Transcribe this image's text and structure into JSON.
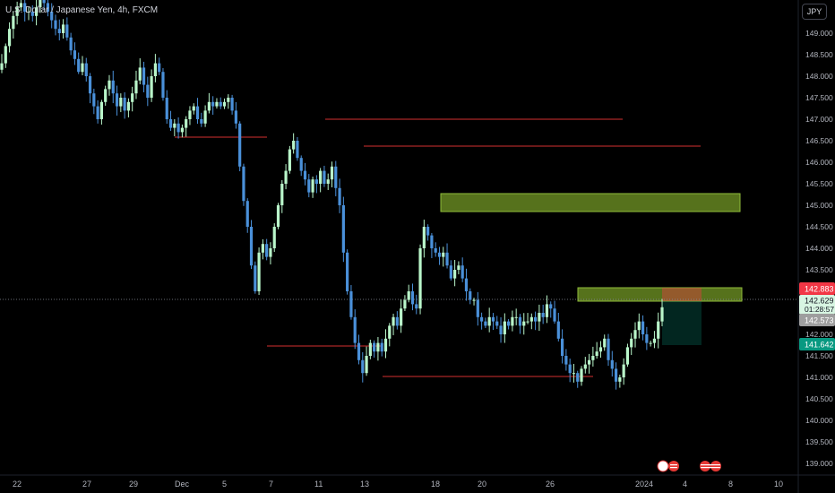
{
  "header": {
    "symbol_title": "U.S. Dollar / Japanese Yen, 4h, FXCM",
    "currency_button": "JPY"
  },
  "colors": {
    "background": "#000000",
    "candle_up": "#b9f6ca",
    "candle_down": "#4a90d9",
    "level_line": "#d32f2f",
    "supply_zone": "#6b8e23",
    "current_price_badge": "#f23645",
    "countdown_badge": "#d8f5e2",
    "bid_badge": "#9e9e9e",
    "target_badge": "#089981"
  },
  "chart_data": {
    "type": "candlestick",
    "title": "U.S. Dollar / Japanese Yen, 4h, FXCM",
    "ylim": [
      138.8,
      149.9
    ],
    "y_ticks": [
      "149.000",
      "148.500",
      "148.000",
      "147.500",
      "147.000",
      "146.500",
      "146.000",
      "145.500",
      "145.000",
      "144.500",
      "144.000",
      "143.500",
      "143.000",
      "142.500",
      "142.000",
      "141.500",
      "141.000",
      "140.500",
      "140.000",
      "139.500",
      "139.000"
    ],
    "x_ticks": [
      "22",
      "27",
      "29",
      "Dec",
      "5",
      "7",
      "11",
      "13",
      "18",
      "20",
      "26",
      "2024",
      "4",
      "8",
      "10"
    ],
    "closes": [
      148.3,
      148.7,
      149.1,
      149.4,
      149.6,
      149.7,
      149.5,
      149.5,
      149.4,
      149.6,
      149.8,
      149.7,
      149.5,
      149.3,
      149.1,
      149.0,
      149.2,
      148.9,
      148.6,
      148.4,
      148.1,
      148.3,
      148.0,
      147.6,
      147.3,
      147.0,
      147.4,
      147.7,
      147.9,
      147.6,
      147.3,
      147.5,
      147.2,
      147.4,
      147.6,
      147.9,
      148.2,
      147.8,
      147.5,
      148.0,
      148.3,
      148.1,
      147.5,
      147.0,
      146.8,
      146.9,
      146.7,
      146.8,
      147.0,
      147.2,
      147.3,
      147.0,
      146.9,
      147.2,
      147.4,
      147.3,
      147.4,
      147.3,
      147.4,
      147.5,
      147.2,
      146.9,
      145.9,
      145.1,
      144.5,
      143.6,
      143.0,
      143.9,
      144.1,
      143.8,
      144.0,
      144.5,
      145.0,
      145.5,
      145.8,
      146.3,
      146.5,
      146.1,
      145.8,
      145.6,
      145.3,
      145.6,
      145.5,
      145.8,
      145.5,
      145.6,
      145.9,
      145.4,
      145.0,
      143.9,
      143.0,
      142.4,
      141.8,
      141.4,
      141.1,
      141.5,
      141.8,
      141.6,
      141.8,
      141.6,
      141.9,
      142.2,
      142.4,
      142.2,
      142.6,
      142.8,
      143.0,
      142.7,
      142.6,
      144.0,
      144.5,
      144.3,
      144.0,
      143.9,
      143.8,
      143.9,
      143.6,
      143.3,
      143.5,
      143.6,
      143.3,
      143.0,
      142.8,
      142.8,
      142.4,
      142.3,
      142.2,
      142.4,
      142.3,
      142.2,
      142.0,
      142.3,
      142.2,
      142.4,
      142.4,
      142.2,
      142.3,
      142.3,
      142.4,
      142.3,
      142.5,
      142.4,
      142.7,
      142.6,
      142.3,
      141.9,
      141.5,
      141.3,
      141.1,
      141.1,
      140.9,
      141.2,
      141.3,
      141.4,
      141.5,
      141.6,
      141.7,
      141.9,
      141.4,
      141.2,
      140.9,
      141.0,
      141.3,
      141.7,
      141.9,
      142.1,
      142.3,
      142.0,
      141.8,
      141.8,
      141.9,
      142.3,
      142.63
    ]
  },
  "price_axis": {
    "current_price": "142.883",
    "last_price": "142.629",
    "countdown": "01:28:57",
    "bid_price": "142.573",
    "target_price": "141.642"
  }
}
